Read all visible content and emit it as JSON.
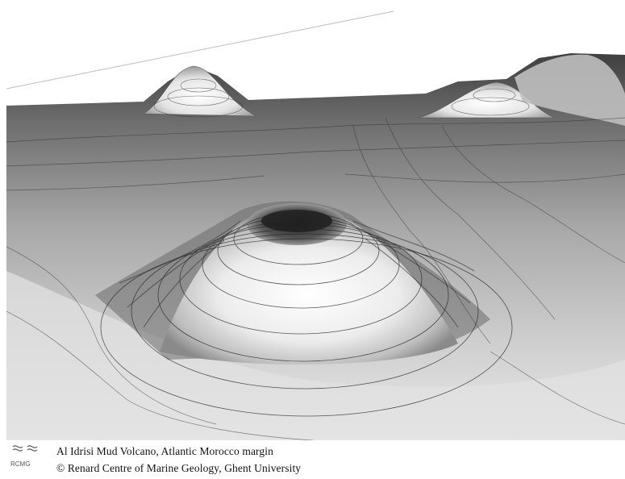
{
  "figure": {
    "caption_title": "Al Idrisi Mud Volcano, Atlantic Morocco margin",
    "caption_credit": "© Renard Centre of Marine Geology, Ghent University",
    "logo_text": "RCMG"
  },
  "colors": {
    "background": "#ffffff",
    "seafloor_light": "#f4f4f4",
    "seafloor_dark": "#4a4a4a",
    "contour": "#222222"
  }
}
